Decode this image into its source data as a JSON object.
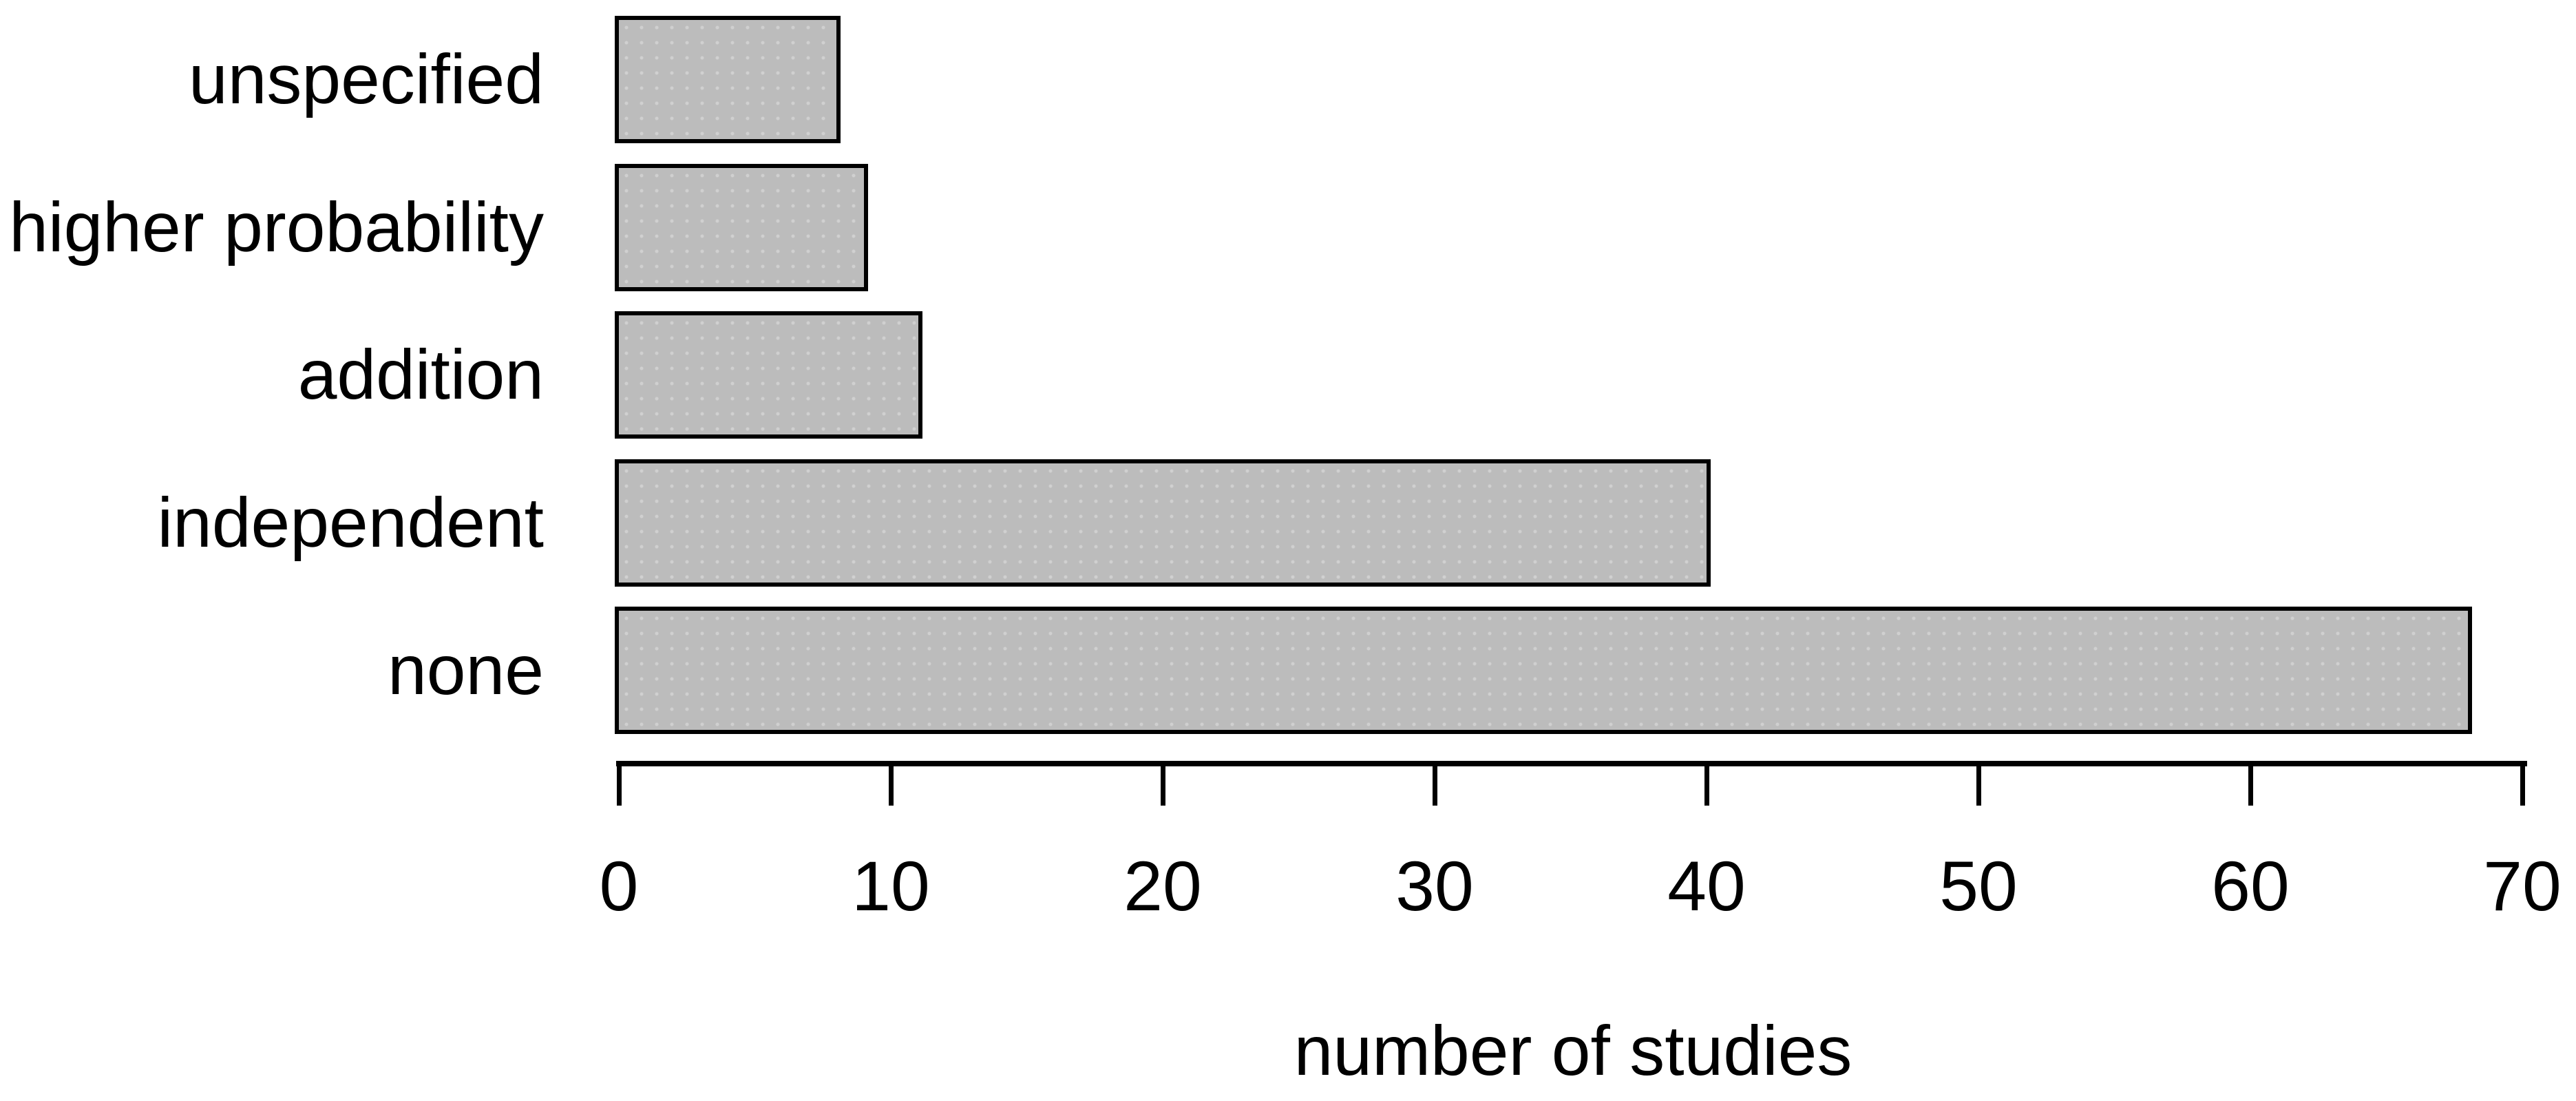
{
  "chart_data": {
    "type": "bar",
    "orientation": "horizontal",
    "title": "",
    "xlabel": "number of studies",
    "ylabel": "",
    "categories": [
      "unspecified",
      "higher probability",
      "addition",
      "independent",
      "none"
    ],
    "values": [
      8,
      9,
      11,
      40,
      68
    ],
    "xlim": [
      0,
      70
    ],
    "xticks": [
      0,
      10,
      20,
      30,
      40,
      50,
      60,
      70
    ],
    "grid": false,
    "legend": null,
    "colors": {
      "bar_fill": "#bcbcbc",
      "bar_border": "#000000",
      "axis": "#000000",
      "text": "#000000",
      "background": "#ffffff"
    }
  }
}
